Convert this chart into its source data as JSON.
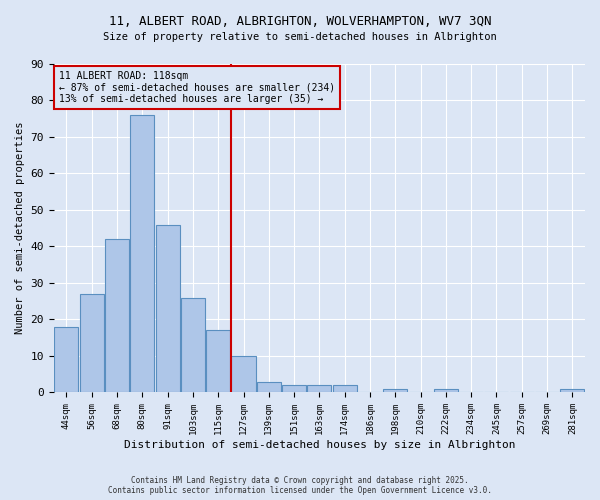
{
  "title_line1": "11, ALBERT ROAD, ALBRIGHTON, WOLVERHAMPTON, WV7 3QN",
  "title_line2": "Size of property relative to semi-detached houses in Albrighton",
  "xlabel": "Distribution of semi-detached houses by size in Albrighton",
  "ylabel": "Number of semi-detached properties",
  "footer_line1": "Contains HM Land Registry data © Crown copyright and database right 2025.",
  "footer_line2": "Contains public sector information licensed under the Open Government Licence v3.0.",
  "categories": [
    "44sqm",
    "56sqm",
    "68sqm",
    "80sqm",
    "91sqm",
    "103sqm",
    "115sqm",
    "127sqm",
    "139sqm",
    "151sqm",
    "163sqm",
    "174sqm",
    "186sqm",
    "198sqm",
    "210sqm",
    "222sqm",
    "234sqm",
    "245sqm",
    "257sqm",
    "269sqm",
    "281sqm"
  ],
  "values": [
    18,
    27,
    42,
    76,
    46,
    26,
    17,
    10,
    3,
    2,
    2,
    2,
    0,
    1,
    0,
    1,
    0,
    0,
    0,
    0,
    1
  ],
  "bar_color": "#aec6e8",
  "bar_edge_color": "#5a8fc0",
  "vline_x_index": 6,
  "vline_color": "#cc0000",
  "annotation_title": "11 ALBERT ROAD: 118sqm",
  "annotation_line2": "← 87% of semi-detached houses are smaller (234)",
  "annotation_line3": "13% of semi-detached houses are larger (35) →",
  "annotation_box_color": "#cc0000",
  "background_color": "#dce6f5",
  "ylim": [
    0,
    90
  ],
  "yticks": [
    0,
    10,
    20,
    30,
    40,
    50,
    60,
    70,
    80,
    90
  ]
}
